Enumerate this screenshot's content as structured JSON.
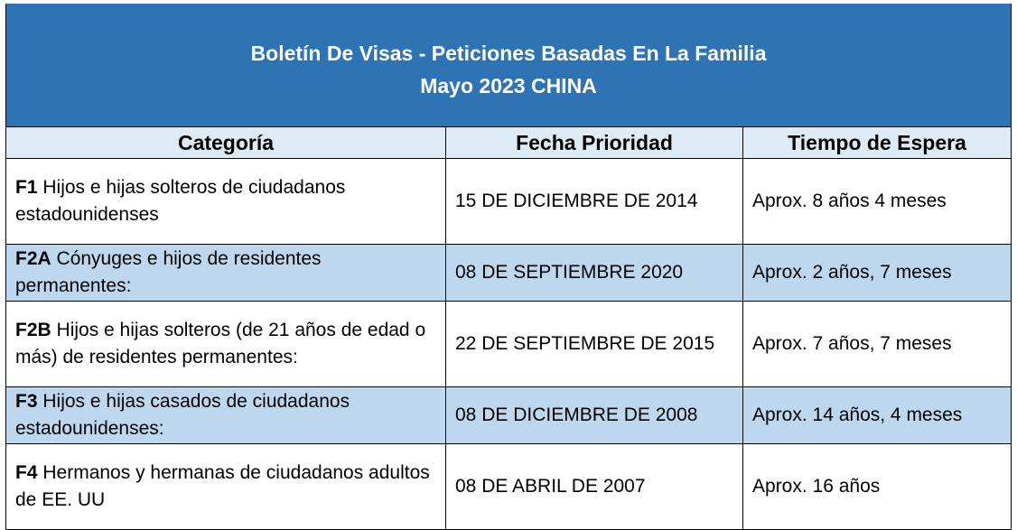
{
  "title": {
    "line1": "Boletín De Visas - Peticiones Basadas En La Familia",
    "line2": "Mayo 2023 CHINA"
  },
  "headers": [
    "Categoría",
    "Fecha Prioridad",
    "Tiempo de Espera"
  ],
  "colors": {
    "title_bg": "#2E74B5",
    "header_bg": "#DDEBF7",
    "shaded_row": "#BDD7EE"
  },
  "rows": [
    {
      "code": "F1",
      "desc": "Hijos e hijas solteros de ciudadanos estadounidenses",
      "date": "15 DE DICIEMBRE DE 2014",
      "wait": "Aprox. 8 años 4 meses"
    },
    {
      "code": "F2A",
      "desc": "Cónyuges e hijos de residentes permanentes:",
      "date": "08 DE SEPTIEMBRE 2020",
      "wait": "Aprox. 2 años, 7 meses"
    },
    {
      "code": "F2B",
      "desc": "Hijos e hijas solteros (de 21 años de edad o más) de residentes permanentes:",
      "date": "22 DE SEPTIEMBRE DE 2015",
      "wait": "Aprox. 7 años, 7 meses"
    },
    {
      "code": "F3",
      "desc": "Hijos e hijas casados de ciudadanos estadounidenses:",
      "date": "08 DE DICIEMBRE DE 2008",
      "wait": "Aprox. 14 años, 4 meses"
    },
    {
      "code": "F4",
      "desc": "Hermanos y hermanas de ciudadanos adultos de EE. UU",
      "date": "08 DE ABRIL DE 2007",
      "wait": "Aprox. 16 años"
    }
  ]
}
